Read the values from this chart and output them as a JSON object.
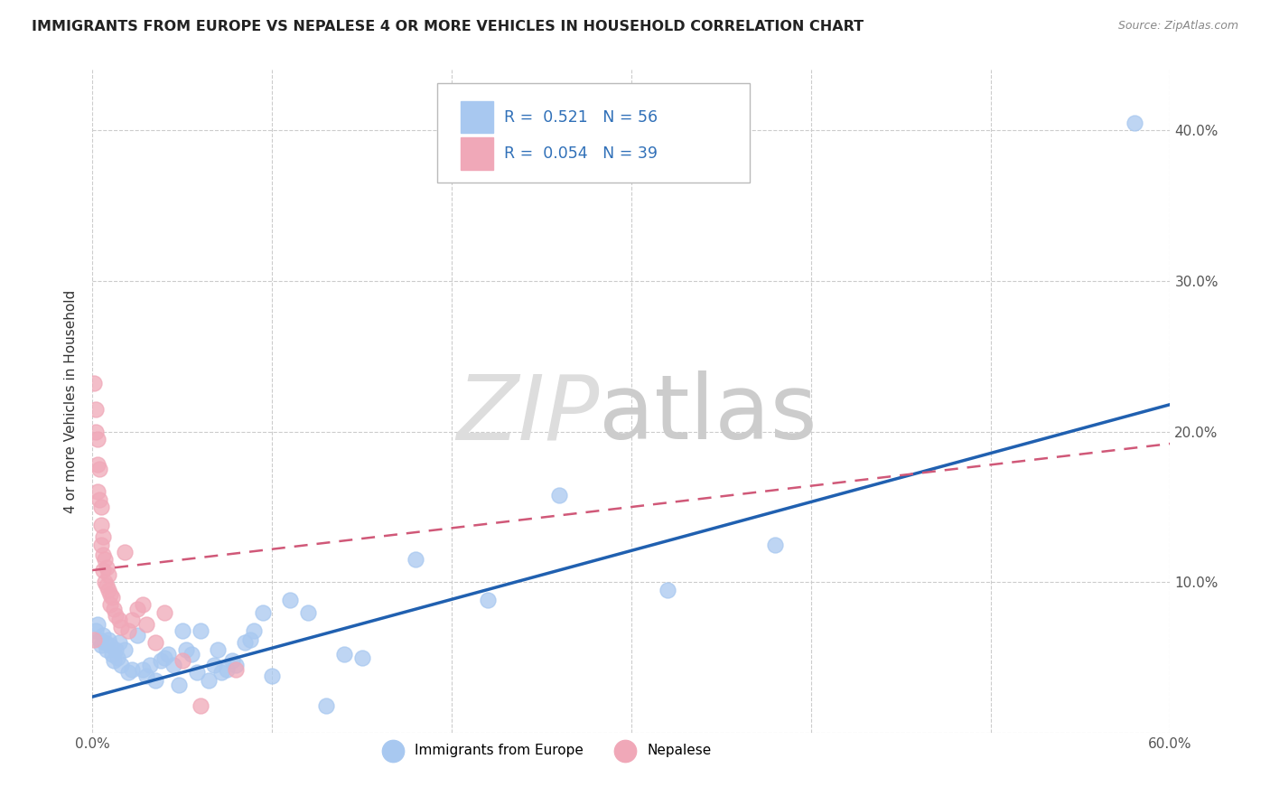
{
  "title": "IMMIGRANTS FROM EUROPE VS NEPALESE 4 OR MORE VEHICLES IN HOUSEHOLD CORRELATION CHART",
  "source": "Source: ZipAtlas.com",
  "ylabel": "4 or more Vehicles in Household",
  "xlim": [
    0.0,
    0.6
  ],
  "ylim": [
    0.0,
    0.44
  ],
  "legend_label1": "Immigrants from Europe",
  "legend_label2": "Nepalese",
  "blue_color": "#a8c8f0",
  "blue_line_color": "#2060b0",
  "pink_color": "#f0a8b8",
  "pink_line_color": "#d05878",
  "blue_x": [
    0.002,
    0.003,
    0.004,
    0.005,
    0.006,
    0.007,
    0.008,
    0.009,
    0.01,
    0.011,
    0.012,
    0.013,
    0.014,
    0.015,
    0.016,
    0.018,
    0.02,
    0.022,
    0.025,
    0.028,
    0.03,
    0.032,
    0.035,
    0.038,
    0.04,
    0.042,
    0.045,
    0.048,
    0.05,
    0.052,
    0.055,
    0.058,
    0.06,
    0.065,
    0.068,
    0.07,
    0.072,
    0.075,
    0.078,
    0.08,
    0.085,
    0.088,
    0.09,
    0.095,
    0.1,
    0.11,
    0.12,
    0.13,
    0.14,
    0.15,
    0.18,
    0.22,
    0.26,
    0.32,
    0.38,
    0.58
  ],
  "blue_y": [
    0.068,
    0.072,
    0.062,
    0.058,
    0.065,
    0.06,
    0.055,
    0.062,
    0.058,
    0.052,
    0.048,
    0.055,
    0.05,
    0.06,
    0.045,
    0.055,
    0.04,
    0.042,
    0.065,
    0.042,
    0.038,
    0.045,
    0.035,
    0.048,
    0.05,
    0.052,
    0.045,
    0.032,
    0.068,
    0.055,
    0.052,
    0.04,
    0.068,
    0.035,
    0.045,
    0.055,
    0.04,
    0.042,
    0.048,
    0.045,
    0.06,
    0.062,
    0.068,
    0.08,
    0.038,
    0.088,
    0.08,
    0.018,
    0.052,
    0.05,
    0.115,
    0.088,
    0.158,
    0.095,
    0.125,
    0.405
  ],
  "pink_x": [
    0.001,
    0.001,
    0.002,
    0.002,
    0.003,
    0.003,
    0.003,
    0.004,
    0.004,
    0.005,
    0.005,
    0.005,
    0.006,
    0.006,
    0.006,
    0.007,
    0.007,
    0.008,
    0.008,
    0.009,
    0.009,
    0.01,
    0.01,
    0.011,
    0.012,
    0.013,
    0.015,
    0.016,
    0.018,
    0.02,
    0.022,
    0.025,
    0.028,
    0.03,
    0.035,
    0.04,
    0.05,
    0.06,
    0.08
  ],
  "pink_y": [
    0.232,
    0.062,
    0.215,
    0.2,
    0.195,
    0.178,
    0.16,
    0.175,
    0.155,
    0.15,
    0.138,
    0.125,
    0.13,
    0.118,
    0.108,
    0.115,
    0.1,
    0.11,
    0.098,
    0.105,
    0.095,
    0.092,
    0.085,
    0.09,
    0.082,
    0.078,
    0.075,
    0.07,
    0.12,
    0.068,
    0.075,
    0.082,
    0.085,
    0.072,
    0.06,
    0.08,
    0.048,
    0.018,
    0.042
  ],
  "blue_R": 0.521,
  "blue_N": 56,
  "pink_R": 0.054,
  "pink_N": 39,
  "blue_line_x0": 0.0,
  "blue_line_y0": 0.024,
  "blue_line_x1": 0.6,
  "blue_line_y1": 0.218,
  "pink_line_x0": 0.0,
  "pink_line_y0": 0.108,
  "pink_line_x1": 0.6,
  "pink_line_y1": 0.192
}
